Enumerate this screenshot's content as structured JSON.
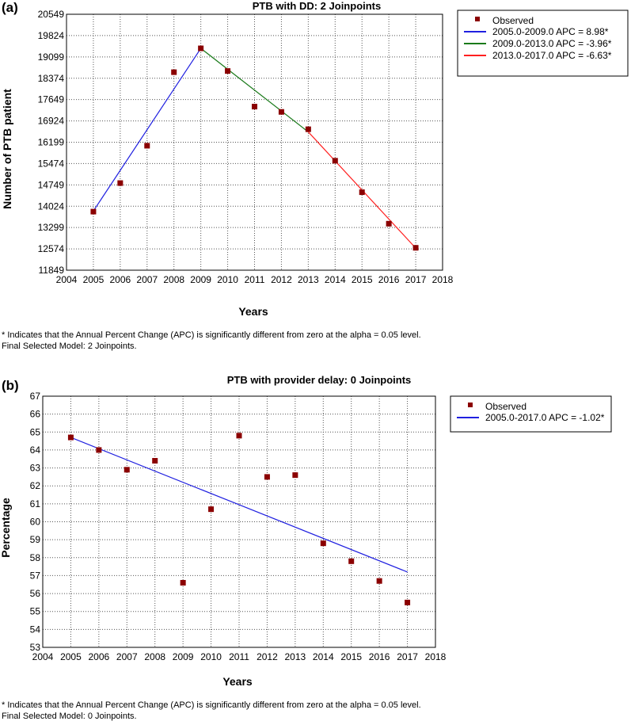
{
  "colors": {
    "observed": "#8b0000",
    "blue": "#2020e0",
    "green": "#1a7a1a",
    "red": "#ff2020",
    "grid": "#555555"
  },
  "chart_data": [
    {
      "type": "scatter",
      "panel_label": "(a)",
      "title": "PTB with DD: 2 Joinpoints",
      "xlabel": "Years",
      "ylabel": "Number of PTB patient",
      "xlim": [
        2004,
        2018
      ],
      "ylim": [
        11849,
        20549
      ],
      "xticks": [
        2004,
        2005,
        2006,
        2007,
        2008,
        2009,
        2010,
        2011,
        2012,
        2013,
        2014,
        2015,
        2016,
        2017,
        2018
      ],
      "yticks": [
        11849,
        12574,
        13299,
        14024,
        14749,
        15474,
        16199,
        16924,
        17649,
        18374,
        19099,
        19824,
        20549
      ],
      "grid": true,
      "legend_position": "top-right outside",
      "observed": {
        "name": "Observed",
        "x": [
          2005,
          2006,
          2007,
          2008,
          2009,
          2010,
          2011,
          2012,
          2013,
          2014,
          2015,
          2016,
          2017
        ],
        "y": [
          13840,
          14810,
          16080,
          18580,
          19390,
          18620,
          17410,
          17230,
          16640,
          15570,
          14500,
          13430,
          12610
        ]
      },
      "segments": [
        {
          "name": "2005.0-2009.0 APC  =  8.98*",
          "color_key": "blue",
          "x": [
            2005,
            2009
          ],
          "y": [
            13860,
            19390
          ]
        },
        {
          "name": "2009.0-2013.0 APC  = -3.96*",
          "color_key": "green",
          "x": [
            2009,
            2013
          ],
          "y": [
            19390,
            16550
          ]
        },
        {
          "name": "2013.0-2017.0 APC  = -6.63*",
          "color_key": "red",
          "x": [
            2013,
            2017
          ],
          "y": [
            16550,
            12600
          ]
        }
      ],
      "notes": [
        "* Indicates that the Annual Percent Change (APC) is significantly different from zero at the alpha = 0.05 level.",
        "Final Selected Model: 2 Joinpoints."
      ]
    },
    {
      "type": "scatter",
      "panel_label": "(b)",
      "title": "PTB  with provider delay: 0 Joinpoints",
      "xlabel": "Years",
      "ylabel": "Percentage",
      "xlim": [
        2004,
        2018
      ],
      "ylim": [
        53,
        67
      ],
      "xticks": [
        2004,
        2005,
        2006,
        2007,
        2008,
        2009,
        2010,
        2011,
        2012,
        2013,
        2014,
        2015,
        2016,
        2017,
        2018
      ],
      "yticks": [
        53,
        54,
        55,
        56,
        57,
        58,
        59,
        60,
        61,
        62,
        63,
        64,
        65,
        66,
        67
      ],
      "grid": true,
      "legend_position": "top-right outside",
      "observed": {
        "name": "Observed",
        "x": [
          2005,
          2006,
          2007,
          2008,
          2009,
          2010,
          2011,
          2012,
          2013,
          2014,
          2015,
          2016,
          2017
        ],
        "y": [
          64.7,
          64.0,
          62.9,
          63.4,
          56.6,
          60.7,
          64.8,
          62.5,
          62.6,
          58.8,
          57.8,
          56.7,
          55.5
        ]
      },
      "segments": [
        {
          "name": "2005.0-2017.0 APC  = -1.02*",
          "color_key": "blue",
          "x": [
            2005,
            2017
          ],
          "y": [
            64.7,
            57.2
          ]
        }
      ],
      "notes": [
        "* Indicates that the Annual Percent Change (APC) is significantly different from zero at the alpha = 0.05 level.",
        "Final Selected Model: 0 Joinpoints."
      ]
    }
  ]
}
